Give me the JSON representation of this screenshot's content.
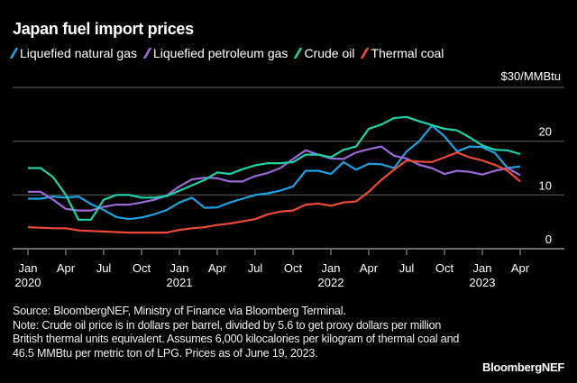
{
  "chart_data": {
    "type": "line",
    "title": "Japan fuel import prices",
    "unit_label": "$30/MMBtu",
    "x_start": "2020-01",
    "x_end": "2023-04",
    "frequency": "monthly",
    "x_ticks": [
      {
        "month": "Jan",
        "year": "2020"
      },
      {
        "month": "Apr",
        "year": ""
      },
      {
        "month": "Jul",
        "year": ""
      },
      {
        "month": "Oct",
        "year": ""
      },
      {
        "month": "Jan",
        "year": "2021"
      },
      {
        "month": "Apr",
        "year": ""
      },
      {
        "month": "Jul",
        "year": ""
      },
      {
        "month": "Oct",
        "year": ""
      },
      {
        "month": "Jan",
        "year": "2022"
      },
      {
        "month": "Apr",
        "year": ""
      },
      {
        "month": "Jul",
        "year": ""
      },
      {
        "month": "Oct",
        "year": ""
      },
      {
        "month": "Jan",
        "year": "2023"
      },
      {
        "month": "Apr",
        "year": ""
      }
    ],
    "y_ticks": [
      "0",
      "10",
      "20"
    ],
    "ylim": [
      0,
      30
    ],
    "grid": true,
    "legend_position": "top-left",
    "series": [
      {
        "name": "Liquefied natural gas",
        "color": "#1fa3e0",
        "values": [
          9.3,
          9.3,
          9.7,
          9.5,
          9.7,
          8.3,
          7.2,
          5.9,
          5.5,
          5.8,
          6.4,
          7.2,
          8.6,
          9.5,
          7.6,
          7.7,
          8.6,
          9.3,
          10.0,
          10.3,
          10.8,
          11.6,
          14.5,
          14.5,
          13.9,
          16.1,
          14.7,
          15.8,
          15.7,
          15.0,
          18.1,
          20.0,
          22.9,
          20.9,
          18.1,
          19.0,
          18.9,
          17.8,
          15.0,
          15.3
        ]
      },
      {
        "name": "Liquefied petroleum gas",
        "color": "#9b6ad6",
        "values": [
          10.6,
          10.6,
          9.1,
          7.4,
          7.1,
          7.1,
          7.8,
          8.2,
          8.2,
          8.6,
          9.1,
          9.9,
          11.6,
          12.9,
          13.2,
          13.1,
          12.5,
          12.5,
          13.5,
          14.1,
          15.0,
          16.7,
          18.3,
          17.5,
          16.8,
          16.7,
          17.9,
          18.5,
          19.0,
          17.3,
          16.8,
          15.6,
          15.0,
          13.9,
          14.5,
          14.3,
          13.8,
          14.5,
          15.0,
          13.7
        ]
      },
      {
        "name": "Crude oil",
        "color": "#1fd4a8",
        "values": [
          15.0,
          15.0,
          13.3,
          10.0,
          5.4,
          5.4,
          9.1,
          10.0,
          10.0,
          9.5,
          9.5,
          9.8,
          10.8,
          11.8,
          12.8,
          14.2,
          13.9,
          14.8,
          15.5,
          15.9,
          15.9,
          16.1,
          17.5,
          17.5,
          17.0,
          18.4,
          19.0,
          22.3,
          23.1,
          24.3,
          24.5,
          23.7,
          23.0,
          22.3,
          22.0,
          20.7,
          19.2,
          18.4,
          18.3,
          17.6
        ]
      },
      {
        "name": "Thermal coal",
        "color": "#ee4b36",
        "values": [
          4.0,
          3.9,
          3.8,
          3.8,
          3.4,
          3.3,
          3.2,
          3.1,
          3.0,
          3.0,
          3.0,
          3.0,
          3.5,
          3.8,
          4.0,
          4.4,
          4.7,
          5.1,
          5.5,
          6.4,
          6.9,
          7.1,
          8.2,
          8.4,
          8.0,
          8.6,
          8.8,
          10.6,
          12.8,
          14.7,
          16.4,
          16.2,
          16.1,
          17.0,
          17.9,
          17.0,
          16.4,
          15.6,
          14.5,
          12.5
        ]
      }
    ]
  },
  "footer": {
    "source": "Source: BloombergNEF, Ministry of Finance via Bloomberg Terminal.",
    "note": "Note: Crude oil price is in dollars per barrel, divided by 5.6 to get proxy dollars per million British thermal units equivalent. Assumes 6,000 kilocalories per kilogram of thermal coal and 46.5 MMBtu per metric ton of LPG. Prices as of June 19, 2023.",
    "brand": "BloombergNEF"
  }
}
